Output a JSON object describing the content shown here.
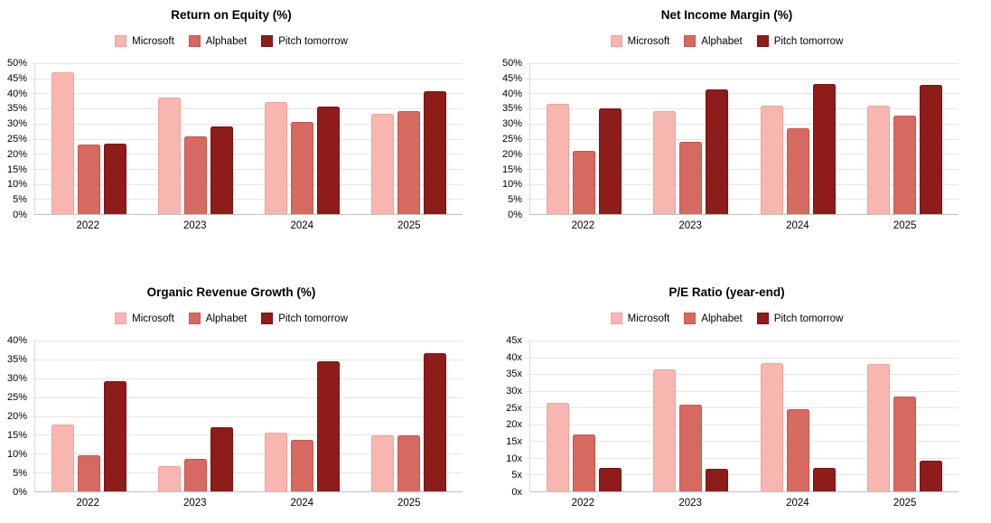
{
  "page": {
    "background": "#ffffff",
    "grid_color": "#e6e6e6",
    "axis_color": "#c2c2c2"
  },
  "chart_data": [
    {
      "type": "bar",
      "title": "Return on Equity (%)",
      "categories": [
        "2022",
        "2023",
        "2024",
        "2025"
      ],
      "series": [
        {
          "name": "Microsoft",
          "color": "#f8b6b1",
          "border_color": "#efa29c",
          "values": [
            47.0,
            38.5,
            37.0,
            33.2
          ]
        },
        {
          "name": "Alphabet",
          "color": "#d76a60",
          "border_color": "#c5564c",
          "values": [
            23.2,
            25.8,
            30.5,
            34.2
          ]
        },
        {
          "name": "Pitch tomorrow",
          "color": "#8e1c1a",
          "border_color": "#7a1412",
          "values": [
            23.4,
            29.0,
            35.6,
            40.7
          ]
        }
      ],
      "xlabel": "",
      "ylabel": "",
      "ylim": [
        0,
        50
      ],
      "ytick_labels": [
        "0%",
        "5%",
        "10%",
        "15%",
        "20%",
        "25%",
        "30%",
        "35%",
        "40%",
        "45%",
        "50%"
      ],
      "grid": true,
      "legend_position": "top"
    },
    {
      "type": "bar",
      "title": "Net Income Margin (%)",
      "categories": [
        "2022",
        "2023",
        "2024",
        "2025"
      ],
      "series": [
        {
          "name": "Microsoft",
          "color": "#f8b6b1",
          "border_color": "#efa29c",
          "values": [
            36.5,
            34.0,
            36.0,
            36.0
          ]
        },
        {
          "name": "Alphabet",
          "color": "#d76a60",
          "border_color": "#c5564c",
          "values": [
            21.0,
            24.0,
            28.4,
            32.5
          ]
        },
        {
          "name": "Pitch tomorrow",
          "color": "#8e1c1a",
          "border_color": "#7a1412",
          "values": [
            35.0,
            41.4,
            43.0,
            42.8
          ]
        }
      ],
      "xlabel": "",
      "ylabel": "",
      "ylim": [
        0,
        50
      ],
      "ytick_labels": [
        "0%",
        "5%",
        "10%",
        "15%",
        "20%",
        "25%",
        "30%",
        "35%",
        "40%",
        "45%",
        "50%"
      ],
      "grid": true,
      "legend_position": "top"
    },
    {
      "type": "bar",
      "title": "Organic Revenue Growth (%)",
      "categories": [
        "2022",
        "2023",
        "2024",
        "2025"
      ],
      "series": [
        {
          "name": "Microsoft",
          "color": "#f8b6b1",
          "border_color": "#efa29c",
          "values": [
            17.8,
            6.8,
            15.5,
            14.8
          ]
        },
        {
          "name": "Alphabet",
          "color": "#d76a60",
          "border_color": "#c5564c",
          "values": [
            9.6,
            8.6,
            13.7,
            14.8
          ]
        },
        {
          "name": "Pitch tomorrow",
          "color": "#8e1c1a",
          "border_color": "#7a1412",
          "values": [
            29.2,
            17.0,
            34.5,
            36.7
          ]
        }
      ],
      "xlabel": "",
      "ylabel": "",
      "ylim": [
        0,
        40
      ],
      "ytick_labels": [
        "0%",
        "5%",
        "10%",
        "15%",
        "20%",
        "25%",
        "30%",
        "35%",
        "40%"
      ],
      "grid": true,
      "legend_position": "top"
    },
    {
      "type": "bar",
      "title": "P/E Ratio (year-end)",
      "categories": [
        "2022",
        "2023",
        "2024",
        "2025"
      ],
      "series": [
        {
          "name": "Microsoft",
          "color": "#f8b6b1",
          "border_color": "#efa29c",
          "values": [
            26.4,
            36.5,
            38.4,
            38.0
          ]
        },
        {
          "name": "Alphabet",
          "color": "#d76a60",
          "border_color": "#c5564c",
          "values": [
            17.0,
            26.0,
            24.4,
            28.3
          ]
        },
        {
          "name": "Pitch tomorrow",
          "color": "#8e1c1a",
          "border_color": "#7a1412",
          "values": [
            6.9,
            6.8,
            7.1,
            9.2
          ]
        }
      ],
      "xlabel": "",
      "ylabel": "",
      "ylim": [
        0,
        45
      ],
      "ytick_labels": [
        "0x",
        "5x",
        "10x",
        "15x",
        "20x",
        "25x",
        "30x",
        "35x",
        "40x",
        "45x"
      ],
      "grid": true,
      "legend_position": "top"
    }
  ]
}
